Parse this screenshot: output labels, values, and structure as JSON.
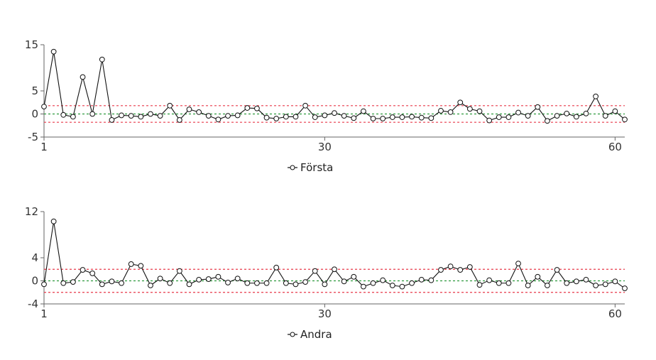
{
  "chart_data": [
    {
      "type": "line",
      "series": [
        {
          "name": "Första",
          "color": "#111111",
          "x": [
            1,
            2,
            3,
            4,
            5,
            6,
            7,
            8,
            9,
            10,
            11,
            12,
            13,
            14,
            15,
            16,
            17,
            18,
            19,
            20,
            21,
            22,
            23,
            24,
            25,
            26,
            27,
            28,
            29,
            30,
            31,
            32,
            33,
            34,
            35,
            36,
            37,
            38,
            39,
            40,
            41,
            42,
            43,
            44,
            45,
            46,
            47,
            48,
            49,
            50,
            51,
            52,
            53,
            54,
            55,
            56,
            57,
            58,
            59,
            60,
            61
          ],
          "values": [
            1.6,
            13.5,
            -0.2,
            -0.6,
            8.0,
            0.0,
            11.8,
            -1.3,
            -0.3,
            -0.4,
            -0.6,
            0.0,
            -0.4,
            1.8,
            -1.3,
            1.0,
            0.4,
            -0.4,
            -1.2,
            -0.4,
            -0.3,
            1.3,
            1.2,
            -0.8,
            -1.0,
            -0.6,
            -0.6,
            1.8,
            -0.7,
            -0.3,
            0.2,
            -0.4,
            -0.9,
            0.6,
            -1.0,
            -1.0,
            -0.7,
            -0.7,
            -0.6,
            -0.8,
            -0.9,
            0.7,
            0.4,
            2.5,
            1.1,
            0.6,
            -1.4,
            -0.7,
            -0.7,
            0.3,
            -0.4,
            1.5,
            -1.5,
            -0.4,
            0.1,
            -0.6,
            0.1,
            3.8,
            -0.4,
            0.6,
            -1.2
          ]
        }
      ],
      "reference_lines": [
        {
          "y": 1.8,
          "color": "#e8394a",
          "style": "dotted"
        },
        {
          "y": 0,
          "color": "#2e9a3e",
          "style": "dotted"
        },
        {
          "y": -1.8,
          "color": "#e8394a",
          "style": "dotted"
        }
      ],
      "ylim": [
        -5,
        15
      ],
      "xlim": [
        1,
        61
      ],
      "yticks": [
        "15",
        "5",
        "0",
        "-5"
      ],
      "ytick_values": [
        15,
        5,
        0,
        -5
      ],
      "xticks": [
        "1",
        "30",
        "60"
      ],
      "xtick_values": [
        1,
        30,
        60
      ],
      "legend": "bottom-center"
    },
    {
      "type": "line",
      "series": [
        {
          "name": "Andra",
          "color": "#111111",
          "x": [
            1,
            2,
            3,
            4,
            5,
            6,
            7,
            8,
            9,
            10,
            11,
            12,
            13,
            14,
            15,
            16,
            17,
            18,
            19,
            20,
            21,
            22,
            23,
            24,
            25,
            26,
            27,
            28,
            29,
            30,
            31,
            32,
            33,
            34,
            35,
            36,
            37,
            38,
            39,
            40,
            41,
            42,
            43,
            44,
            45,
            46,
            47,
            48,
            49,
            50,
            51,
            52,
            53,
            54,
            55,
            56,
            57,
            58,
            59,
            60,
            61
          ],
          "values": [
            -0.6,
            10.3,
            -0.4,
            -0.2,
            1.9,
            1.3,
            -0.6,
            -0.1,
            -0.4,
            2.9,
            2.6,
            -0.8,
            0.4,
            -0.4,
            1.7,
            -0.6,
            0.2,
            0.3,
            0.7,
            -0.3,
            0.4,
            -0.4,
            -0.4,
            -0.4,
            2.3,
            -0.4,
            -0.6,
            -0.2,
            1.7,
            -0.6,
            2.0,
            -0.1,
            0.7,
            -1.0,
            -0.4,
            0.1,
            -0.8,
            -1.0,
            -0.4,
            0.2,
            0.1,
            1.9,
            2.5,
            1.9,
            2.4,
            -0.7,
            0.1,
            -0.4,
            -0.4,
            3.0,
            -0.8,
            0.7,
            -0.8,
            1.9,
            -0.4,
            -0.1,
            0.2,
            -0.8,
            -0.6,
            -0.1,
            -1.3
          ]
        }
      ],
      "reference_lines": [
        {
          "y": 2.0,
          "color": "#e8394a",
          "style": "dotted"
        },
        {
          "y": 0,
          "color": "#2e9a3e",
          "style": "dotted"
        },
        {
          "y": -2.0,
          "color": "#e8394a",
          "style": "dotted"
        }
      ],
      "ylim": [
        -4,
        12
      ],
      "xlim": [
        1,
        61
      ],
      "yticks": [
        "12",
        "4",
        "0",
        "-4"
      ],
      "ytick_values": [
        12,
        4,
        0,
        -4
      ],
      "xticks": [
        "1",
        "30",
        "60"
      ],
      "xtick_values": [
        1,
        30,
        60
      ],
      "legend": "bottom-center"
    }
  ]
}
